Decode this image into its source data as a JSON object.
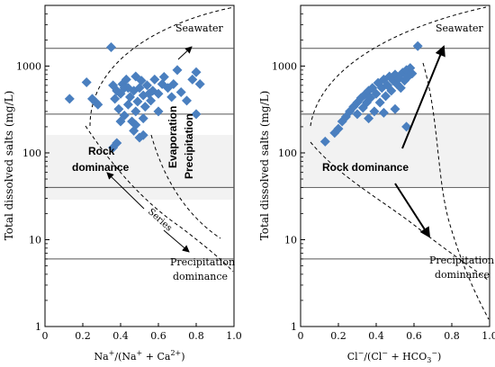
{
  "chart_data": [
    {
      "type": "scatter",
      "xlabel_parts": [
        "Na",
        "+",
        "/(Na",
        "+",
        " + Ca",
        "2+",
        ")"
      ],
      "ylabel": "Total dissolved salts (mg/L)",
      "xlim": [
        0,
        1
      ],
      "ylim": [
        1,
        5000
      ],
      "yscale": "log",
      "x_ticks": [
        "0",
        "0.2",
        "0.4",
        "0.6",
        "0.8",
        "1.0"
      ],
      "x_tick_values": [
        0,
        0.2,
        0.4,
        0.6,
        0.8,
        1.0
      ],
      "y_ticks": [
        "1",
        "10",
        "100",
        "1000"
      ],
      "y_tick_values": [
        1,
        10,
        100,
        1000
      ],
      "ref_lines_y": [
        6,
        40,
        280,
        1600
      ],
      "grid": false,
      "marker_color": "#4a7fbf",
      "annotations": {
        "seawater": "Seawater",
        "rock_dominance_line1": "Rock",
        "rock_dominance_line2": "dominance",
        "evaporation_line1": "Evaporation",
        "evaporation_line2": "Precipitation",
        "series": "Series",
        "precip_line1": "Precipitation",
        "precip_line2": "dominance"
      },
      "points": [
        [
          0.13,
          420
        ],
        [
          0.22,
          650
        ],
        [
          0.25,
          420
        ],
        [
          0.27,
          380
        ],
        [
          0.28,
          360
        ],
        [
          0.35,
          1650
        ],
        [
          0.36,
          600
        ],
        [
          0.37,
          420
        ],
        [
          0.38,
          520
        ],
        [
          0.39,
          320
        ],
        [
          0.4,
          480
        ],
        [
          0.41,
          620
        ],
        [
          0.42,
          270
        ],
        [
          0.42,
          560
        ],
        [
          0.43,
          700
        ],
        [
          0.44,
          360
        ],
        [
          0.45,
          440
        ],
        [
          0.46,
          230
        ],
        [
          0.47,
          520
        ],
        [
          0.47,
          180
        ],
        [
          0.48,
          300
        ],
        [
          0.48,
          760
        ],
        [
          0.49,
          390
        ],
        [
          0.5,
          560
        ],
        [
          0.5,
          150
        ],
        [
          0.51,
          680
        ],
        [
          0.52,
          250
        ],
        [
          0.52,
          460
        ],
        [
          0.53,
          340
        ],
        [
          0.54,
          600
        ],
        [
          0.55,
          480
        ],
        [
          0.56,
          400
        ],
        [
          0.57,
          520
        ],
        [
          0.58,
          700
        ],
        [
          0.6,
          300
        ],
        [
          0.62,
          620
        ],
        [
          0.63,
          750
        ],
        [
          0.65,
          560
        ],
        [
          0.67,
          440
        ],
        [
          0.68,
          620
        ],
        [
          0.7,
          900
        ],
        [
          0.72,
          500
        ],
        [
          0.75,
          400
        ],
        [
          0.78,
          700
        ],
        [
          0.8,
          850
        ],
        [
          0.82,
          620
        ],
        [
          0.8,
          280
        ],
        [
          0.52,
          160
        ],
        [
          0.48,
          210
        ],
        [
          0.4,
          230
        ],
        [
          0.38,
          130
        ],
        [
          0.36,
          115
        ],
        [
          0.44,
          560
        ],
        [
          0.6,
          480
        ]
      ]
    },
    {
      "type": "scatter",
      "xlabel_parts": [
        "Cl",
        "−",
        "/(Cl",
        "−",
        " + HCO",
        "3",
        "−",
        ")"
      ],
      "ylabel": "Total dissolved salts (mg/L)",
      "xlim": [
        0,
        1
      ],
      "ylim": [
        1,
        5000
      ],
      "yscale": "log",
      "x_ticks": [
        "0",
        "0.2",
        "0.4",
        "0.6",
        "0.8",
        "1.0"
      ],
      "x_tick_values": [
        0,
        0.2,
        0.4,
        0.6,
        0.8,
        1.0
      ],
      "y_ticks": [
        "1",
        "10",
        "100",
        "1000"
      ],
      "y_tick_values": [
        1,
        10,
        100,
        1000
      ],
      "ref_lines_y": [
        6,
        40,
        280,
        1600
      ],
      "grid": false,
      "marker_color": "#4a7fbf",
      "annotations": {
        "seawater": "Seawater",
        "rock_dominance": "Rock dominance",
        "precip_line1": "Precipitation",
        "precip_line2": "dominance"
      },
      "points": [
        [
          0.13,
          135
        ],
        [
          0.18,
          170
        ],
        [
          0.2,
          190
        ],
        [
          0.22,
          230
        ],
        [
          0.24,
          260
        ],
        [
          0.26,
          300
        ],
        [
          0.28,
          340
        ],
        [
          0.3,
          380
        ],
        [
          0.3,
          280
        ],
        [
          0.32,
          430
        ],
        [
          0.33,
          330
        ],
        [
          0.34,
          470
        ],
        [
          0.35,
          380
        ],
        [
          0.36,
          520
        ],
        [
          0.37,
          430
        ],
        [
          0.38,
          560
        ],
        [
          0.39,
          300
        ],
        [
          0.4,
          480
        ],
        [
          0.41,
          640
        ],
        [
          0.42,
          380
        ],
        [
          0.43,
          560
        ],
        [
          0.44,
          700
        ],
        [
          0.45,
          450
        ],
        [
          0.46,
          600
        ],
        [
          0.47,
          760
        ],
        [
          0.48,
          520
        ],
        [
          0.49,
          680
        ],
        [
          0.5,
          800
        ],
        [
          0.51,
          620
        ],
        [
          0.52,
          720
        ],
        [
          0.53,
          560
        ],
        [
          0.54,
          840
        ],
        [
          0.55,
          680
        ],
        [
          0.56,
          900
        ],
        [
          0.57,
          760
        ],
        [
          0.58,
          950
        ],
        [
          0.59,
          820
        ],
        [
          0.62,
          1700
        ],
        [
          0.56,
          200
        ],
        [
          0.5,
          320
        ],
        [
          0.44,
          290
        ],
        [
          0.36,
          250
        ]
      ]
    }
  ]
}
